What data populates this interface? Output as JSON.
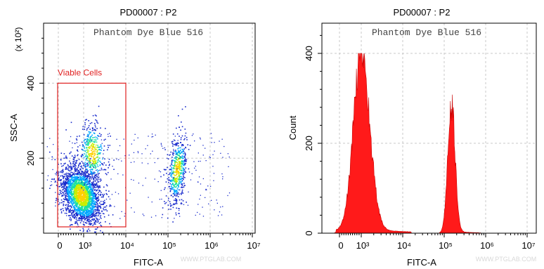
{
  "chart_data": [
    {
      "type": "scatter",
      "title": "PD00007 : P2",
      "subtitle": "Phantom Dye Blue 516",
      "xlabel": "FITC-A",
      "ylabel": "SSC-A",
      "y_multiplier_label": "(x 10²)",
      "x_scale": "log",
      "x_tick_labels": [
        "0",
        "10³",
        "10⁴",
        "10⁵",
        "10⁶",
        "10⁷"
      ],
      "x_ticks": [
        0,
        1000,
        10000,
        100000,
        1000000,
        10000000
      ],
      "y_ticks": [
        200,
        400
      ],
      "ylim": [
        0,
        560
      ],
      "grid": true,
      "gate": {
        "label": "Viable Cells",
        "x_range": [
          0,
          10000
        ],
        "y_range": [
          0,
          400
        ],
        "color": "#e02020"
      },
      "populations": [
        {
          "name": "",
          "x_center": 1000,
          "y_center": 110,
          "approx_events": 2600
        },
        {
          "name": "",
          "x_center": 150000,
          "y_center": 170,
          "approx_events": 650
        }
      ],
      "density_colors": [
        "#1a2ccc",
        "#00a8ff",
        "#19e0a0",
        "#c8ee00",
        "#ffd000"
      ]
    },
    {
      "type": "area",
      "title": "PD00007 : P2",
      "subtitle": "Phantom Dye Blue 516",
      "xlabel": "FITC-A",
      "ylabel": "Count",
      "x_scale": "log",
      "x_tick_labels": [
        "0",
        "10³",
        "10⁴",
        "10⁵",
        "10⁶",
        "10⁷"
      ],
      "x_ticks": [
        0,
        1000,
        10000,
        100000,
        1000000,
        10000000
      ],
      "y_ticks": [
        0,
        200,
        400
      ],
      "ylim": [
        0,
        400
      ],
      "grid": true,
      "fill_color": "#ff1a1a",
      "series": [
        {
          "name": "",
          "peaks": [
            {
              "x": 1000,
              "count": 395
            },
            {
              "x": 150000,
              "count": 280
            }
          ]
        }
      ]
    }
  ],
  "watermark": "WWW.PTGLAB.COM"
}
